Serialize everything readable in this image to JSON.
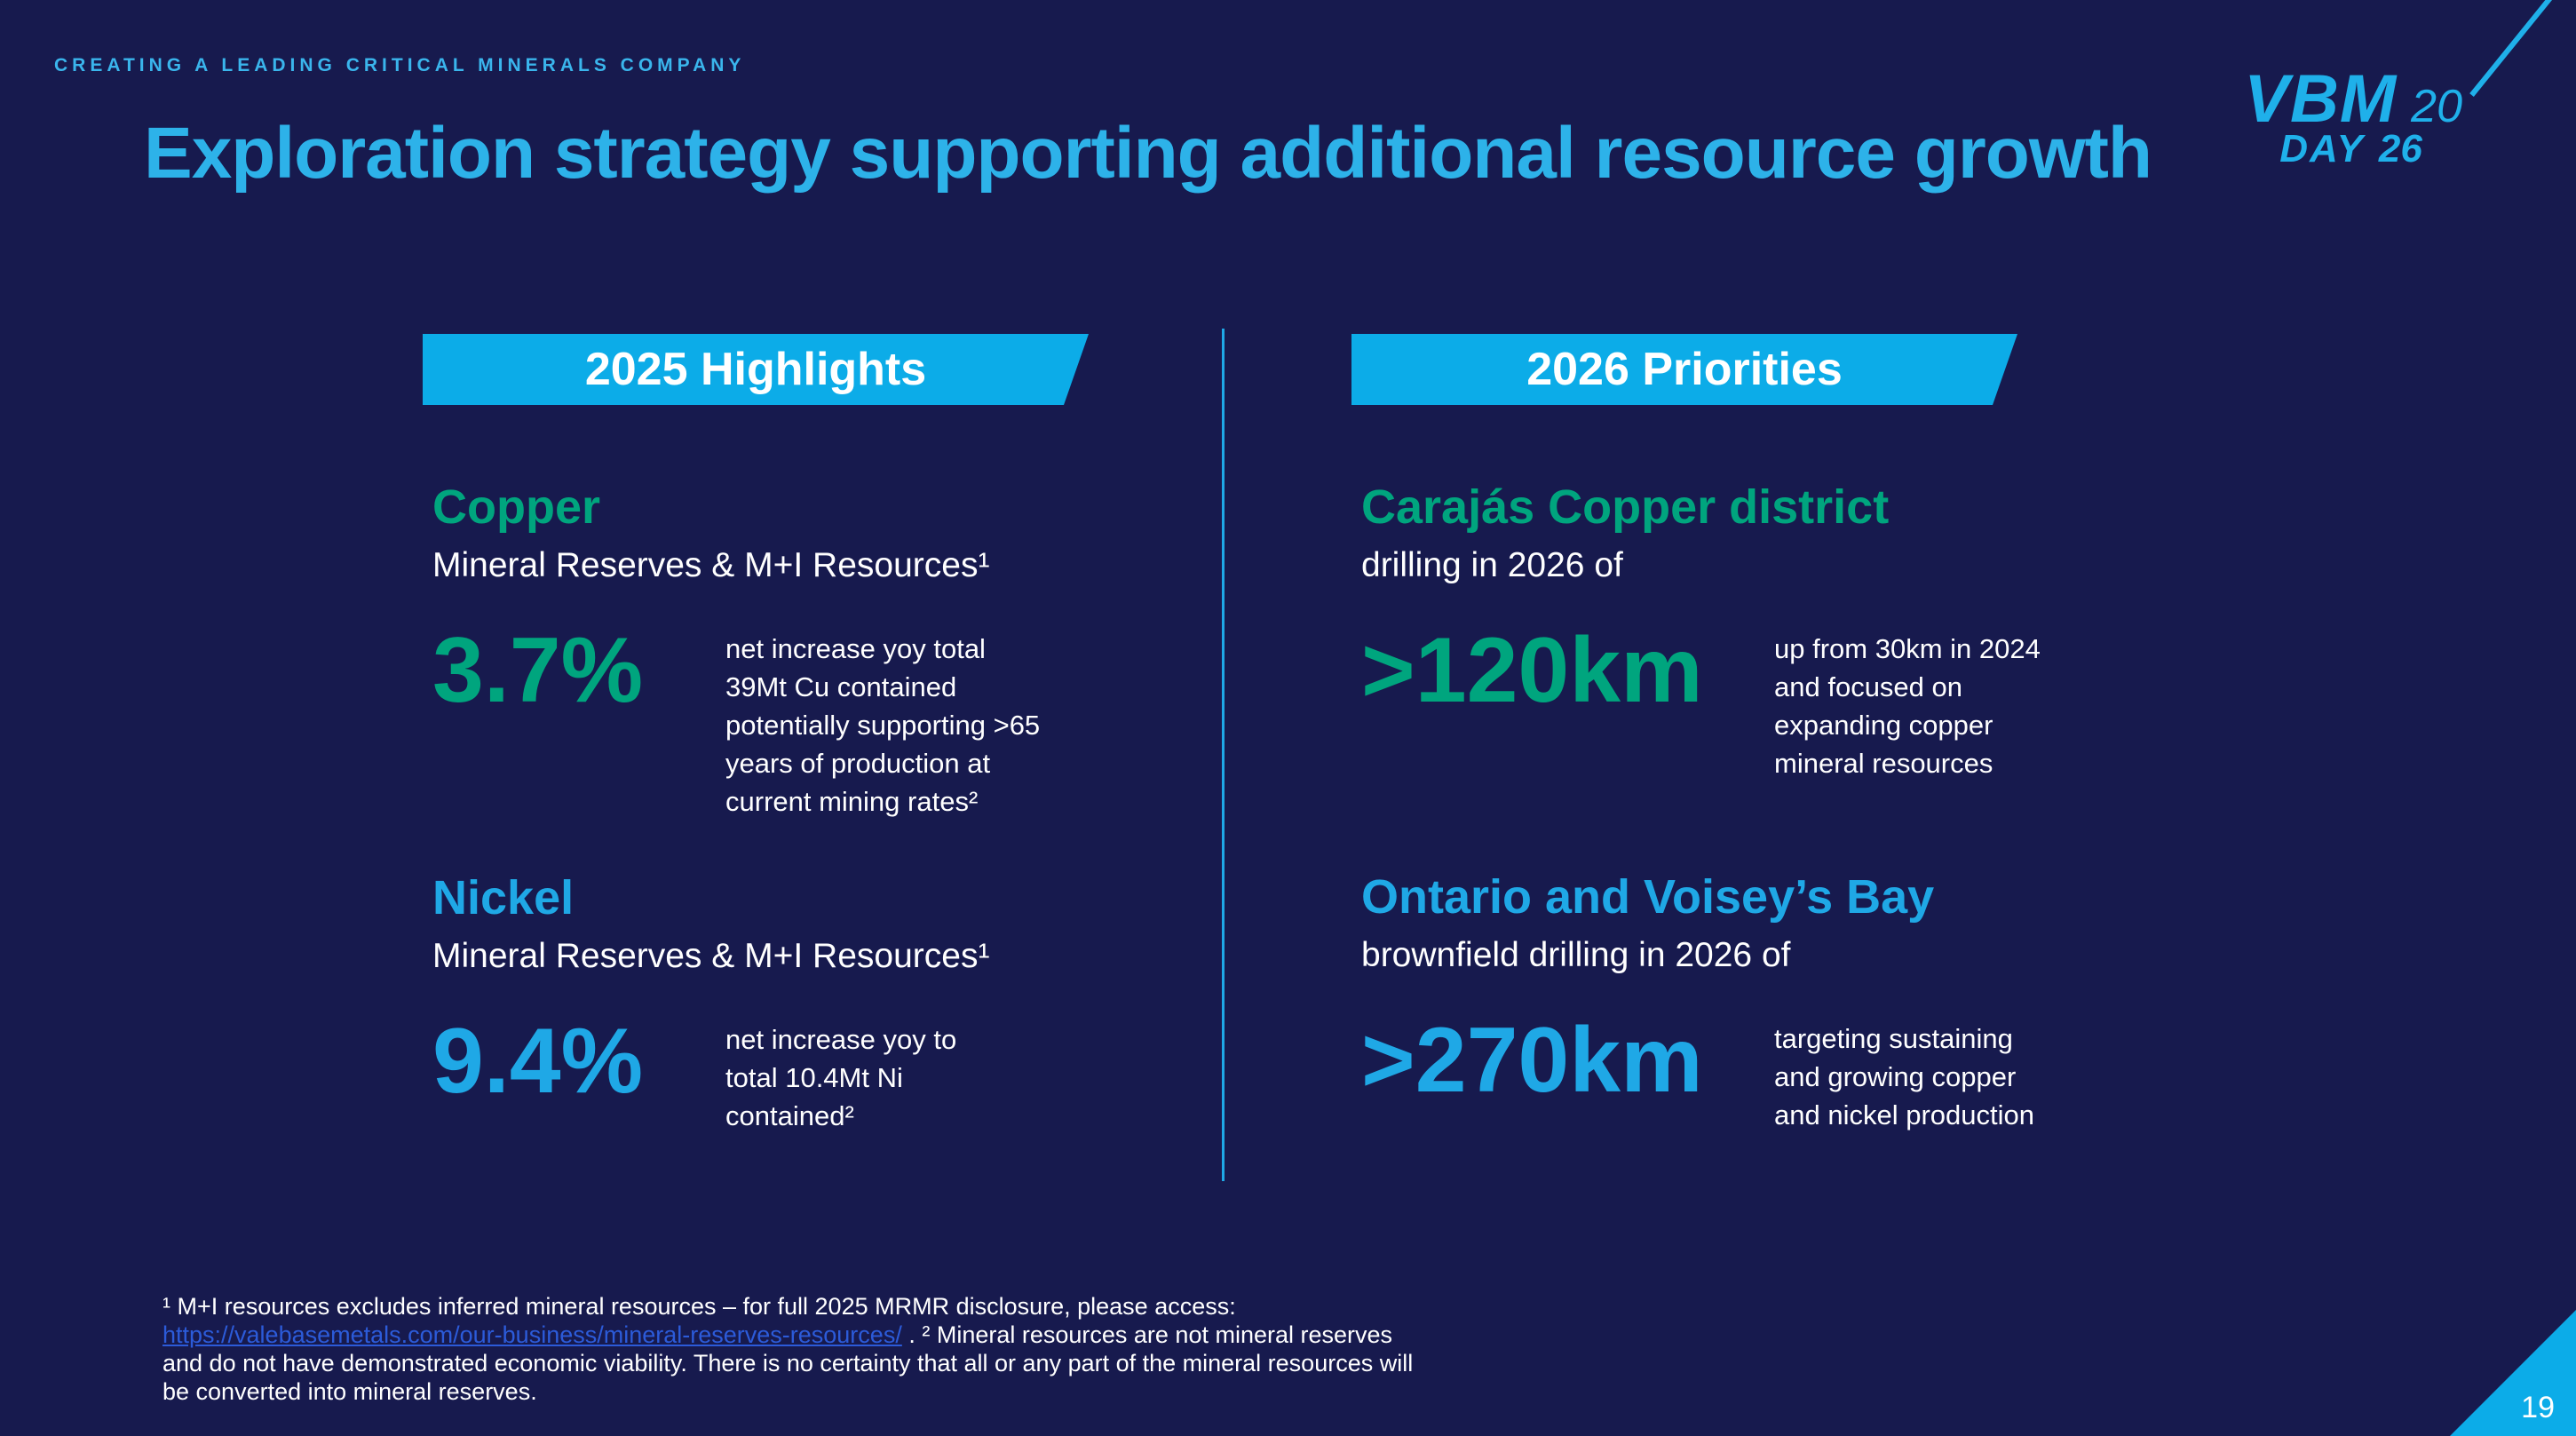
{
  "slide": {
    "eyebrow": "CREATING A LEADING CRITICAL MINERALS COMPANY",
    "title": "Exploration strategy supporting additional resource growth",
    "page_number": "19"
  },
  "logo": {
    "vbm": "VBM",
    "year_top": "20",
    "day": "DAY",
    "year_bottom": "26"
  },
  "columns": {
    "left": {
      "banner": "2025 Highlights",
      "sections": [
        {
          "heading": "Copper",
          "subheading": "Mineral Reserves & M+I Resources¹",
          "stat": "3.7%",
          "desc": "net increase yoy total\n39Mt Cu contained\npotentially supporting  >65\nyears of production at\ncurrent mining rates²"
        },
        {
          "heading": "Nickel",
          "subheading": "Mineral Reserves & M+I Resources¹",
          "stat": "9.4%",
          "desc": "net increase yoy to\ntotal 10.4Mt Ni\ncontained²"
        }
      ]
    },
    "right": {
      "banner": "2026 Priorities",
      "sections": [
        {
          "heading": "Carajás Copper district",
          "subheading": "drilling in 2026 of",
          "stat": ">120km",
          "desc": "up from 30km in 2024\nand focused on\nexpanding copper\nmineral resources"
        },
        {
          "heading": "Ontario and Voisey’s Bay",
          "subheading": "brownfield drilling in 2026 of",
          "stat": ">270km",
          "desc": "targeting sustaining\nand growing copper\nand nickel production"
        }
      ]
    }
  },
  "footnote": {
    "line1": "¹ M+I resources excludes inferred mineral resources – for full 2025 MRMR disclosure, please access:",
    "link_text": "https://valebasemetals.com/our-business/mineral-reserves-resources/",
    "rest": " . ² Mineral resources are not mineral reserves\nand do not have demonstrated economic viability.  There is no certainty that all or any part of the mineral resources will\nbe converted into mineral reserves."
  },
  "colors": {
    "background": "#171a4e",
    "accent_cyan": "#1fa8e6",
    "title_cyan": "#2db2e9",
    "accent_teal": "#00a57e",
    "banner_cyan": "#0cace8",
    "link_blue": "#2c5bd9",
    "text_white": "#ffffff"
  }
}
